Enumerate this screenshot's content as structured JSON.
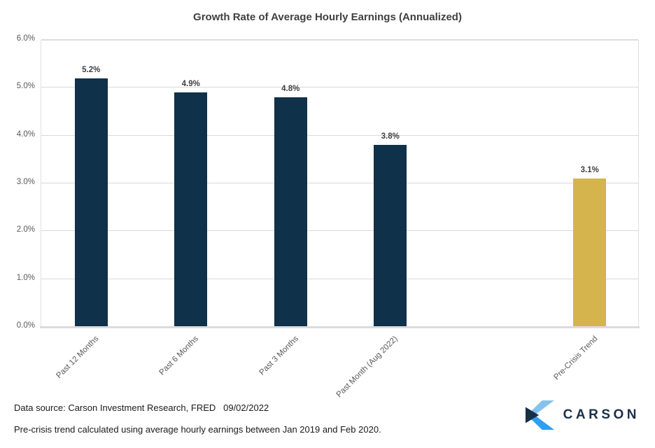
{
  "chart_data": {
    "type": "bar",
    "title": "Growth Rate of Average Hourly Earnings (Annualized)",
    "categories": [
      "Past 12 Months",
      "Past 6 Months",
      "Past 3 Months",
      "Past Month (Aug 2022)",
      "",
      "Pre-Crisis Trend"
    ],
    "values": [
      5.2,
      4.9,
      4.8,
      3.8,
      null,
      3.1
    ],
    "value_labels": [
      "5.2%",
      "4.9%",
      "4.8%",
      "3.8%",
      "",
      "3.1%"
    ],
    "bar_colors": [
      "#0f314a",
      "#0f314a",
      "#0f314a",
      "#0f314a",
      null,
      "#d5b44e"
    ],
    "xlabel": "",
    "ylabel": "",
    "ylim": [
      0,
      6
    ],
    "yticks": [
      0,
      1,
      2,
      3,
      4,
      5,
      6
    ],
    "ytick_labels": [
      "0.0%",
      "1.0%",
      "2.0%",
      "3.0%",
      "4.0%",
      "5.0%",
      "6.0%"
    ],
    "grid": true,
    "legend": false
  },
  "footer": {
    "source_line": "Data source: Carson Investment Research, FRED   09/02/2022",
    "note_line": "Pre-crisis trend calculated using average hourly earnings between Jan 2019 and Feb 2020."
  },
  "logo": {
    "text": "CARSON"
  },
  "colors": {
    "bar_navy": "#0f314a",
    "bar_gold": "#d5b44e",
    "title_text": "#404040",
    "axis_text": "#595959",
    "gridline": "#d9d9d9",
    "logo_navy": "#1b3049",
    "logo_light_blue": "#85c2f0",
    "logo_bright_blue": "#2f9ef0"
  }
}
